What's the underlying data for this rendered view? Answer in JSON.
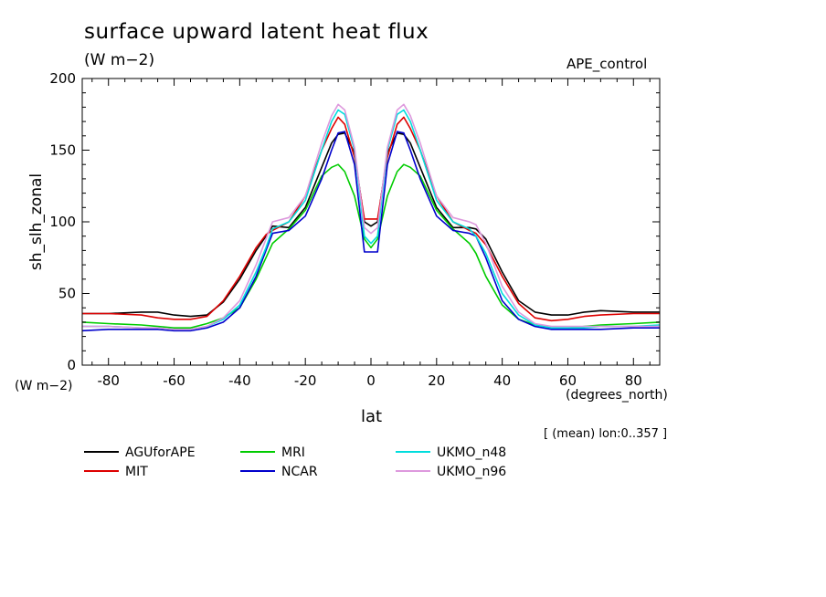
{
  "header": {
    "title": "surface upward latent heat flux",
    "units": "(W m−2)",
    "run": "APE_control"
  },
  "axes": {
    "ylabel": "sh_slh_zonal",
    "yunits": "(W m−2)",
    "xlabel": "lat",
    "xunits": "(degrees_north)",
    "note": "[ (mean) lon:0..357 ]"
  },
  "chart_data": {
    "type": "line",
    "title": "surface upward latent heat flux",
    "xlabel": "lat",
    "ylabel": "sh_slh_zonal",
    "xlim": [
      -88,
      88
    ],
    "ylim": [
      0,
      200
    ],
    "xticks": [
      -80,
      -60,
      -40,
      -20,
      0,
      20,
      40,
      60,
      80
    ],
    "yticks": [
      0,
      50,
      100,
      150,
      200
    ],
    "grid": false,
    "legend": "bottom",
    "x": [
      -88,
      -80,
      -70,
      -65,
      -60,
      -55,
      -50,
      -45,
      -40,
      -35,
      -32,
      -30,
      -25,
      -20,
      -15,
      -12,
      -10,
      -8,
      -5,
      -2,
      0,
      2,
      5,
      8,
      10,
      12,
      15,
      20,
      25,
      30,
      32,
      35,
      40,
      45,
      50,
      55,
      60,
      65,
      70,
      80,
      88
    ],
    "series": [
      {
        "name": "AGUforAPE",
        "color": "#000000",
        "values": [
          36,
          36,
          37,
          37,
          35,
          34,
          35,
          44,
          60,
          80,
          90,
          97,
          96,
          110,
          138,
          155,
          161,
          162,
          148,
          100,
          97,
          100,
          148,
          162,
          161,
          155,
          138,
          110,
          96,
          96,
          95,
          88,
          65,
          45,
          37,
          35,
          35,
          37,
          38,
          37,
          37
        ]
      },
      {
        "name": "MIT",
        "color": "#dd0000",
        "values": [
          36,
          36,
          35,
          33,
          32,
          32,
          34,
          45,
          62,
          82,
          91,
          94,
          100,
          118,
          150,
          165,
          173,
          168,
          145,
          102,
          102,
          102,
          145,
          168,
          173,
          165,
          150,
          118,
          100,
          94,
          92,
          84,
          62,
          43,
          33,
          31,
          32,
          34,
          35,
          36,
          36
        ]
      },
      {
        "name": "MRI",
        "color": "#00cc00",
        "values": [
          30,
          29,
          28,
          27,
          26,
          26,
          29,
          33,
          40,
          60,
          75,
          85,
          95,
          108,
          132,
          138,
          140,
          135,
          118,
          88,
          82,
          88,
          118,
          135,
          140,
          138,
          132,
          108,
          95,
          85,
          78,
          62,
          42,
          32,
          28,
          26,
          26,
          27,
          28,
          29,
          30
        ]
      },
      {
        "name": "NCAR",
        "color": "#0000cc",
        "values": [
          24,
          25,
          25,
          25,
          24,
          24,
          26,
          30,
          40,
          62,
          80,
          92,
          94,
          104,
          130,
          150,
          162,
          163,
          140,
          79,
          79,
          79,
          140,
          163,
          162,
          150,
          130,
          104,
          94,
          92,
          90,
          75,
          45,
          32,
          27,
          25,
          25,
          25,
          25,
          26,
          26
        ]
      },
      {
        "name": "UKMO_n48",
        "color": "#00dddd",
        "values": [
          27,
          27,
          26,
          26,
          25,
          25,
          27,
          32,
          42,
          65,
          82,
          95,
          100,
          115,
          150,
          170,
          178,
          175,
          150,
          90,
          85,
          90,
          150,
          175,
          178,
          170,
          150,
          115,
          100,
          95,
          90,
          78,
          50,
          35,
          28,
          26,
          26,
          26,
          27,
          27,
          28
        ]
      },
      {
        "name": "UKMO_n96",
        "color": "#dd99dd",
        "values": [
          27,
          27,
          26,
          26,
          25,
          25,
          27,
          33,
          45,
          70,
          88,
          100,
          103,
          118,
          155,
          174,
          182,
          178,
          152,
          96,
          92,
          96,
          152,
          178,
          182,
          174,
          155,
          118,
          103,
          100,
          98,
          85,
          55,
          37,
          29,
          27,
          27,
          27,
          27,
          27,
          27
        ]
      }
    ]
  }
}
